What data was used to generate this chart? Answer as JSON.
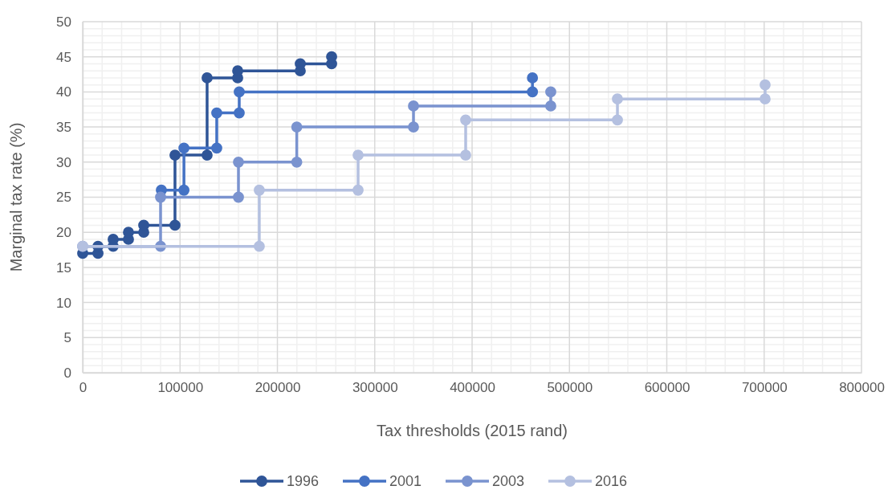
{
  "chart_data": {
    "type": "line",
    "xlabel": "Tax thresholds (2015 rand)",
    "ylabel": "Marginal tax rate (%)",
    "xlim": [
      0,
      800000
    ],
    "xticks": [
      0,
      100000,
      200000,
      300000,
      400000,
      500000,
      600000,
      700000,
      800000
    ],
    "ylim": [
      0,
      50
    ],
    "yticks": [
      0,
      5,
      10,
      15,
      20,
      25,
      30,
      35,
      40,
      45,
      50
    ],
    "grid": true,
    "legend": "bottom",
    "marker": "circle",
    "line_style": "solid",
    "series": [
      {
        "name": "1996",
        "color": "#2f5597",
        "x": [
          0,
          15700,
          15700,
          31300,
          31300,
          47000,
          47000,
          62700,
          62700,
          94800,
          94800,
          127800,
          127800,
          159200,
          159200,
          223500,
          223500,
          255700,
          255700
        ],
        "values": [
          17,
          17,
          18,
          18,
          19,
          19,
          20,
          20,
          21,
          21,
          31,
          31,
          42,
          42,
          43,
          43,
          44,
          44,
          45
        ]
      },
      {
        "name": "2001",
        "color": "#4472c4",
        "x": [
          80800,
          104000,
          104000,
          137700,
          137700,
          160800,
          160800,
          462000,
          462000
        ],
        "values": [
          26,
          26,
          32,
          32,
          37,
          37,
          40,
          40,
          42
        ]
      },
      {
        "name": "2003",
        "color": "#7a93cf",
        "x": [
          0,
          80000,
          80000,
          160000,
          160000,
          219900,
          219900,
          339800,
          339800,
          480800,
          480800
        ],
        "values": [
          18,
          18,
          25,
          25,
          30,
          30,
          35,
          35,
          38,
          38,
          40
        ]
      },
      {
        "name": "2016",
        "color": "#b4c0e0",
        "x": [
          0,
          181400,
          181400,
          282900,
          282900,
          393400,
          393400,
          549300,
          549300,
          701000,
          701000
        ],
        "values": [
          18,
          18,
          26,
          26,
          31,
          31,
          36,
          36,
          39,
          39,
          41
        ]
      }
    ]
  }
}
